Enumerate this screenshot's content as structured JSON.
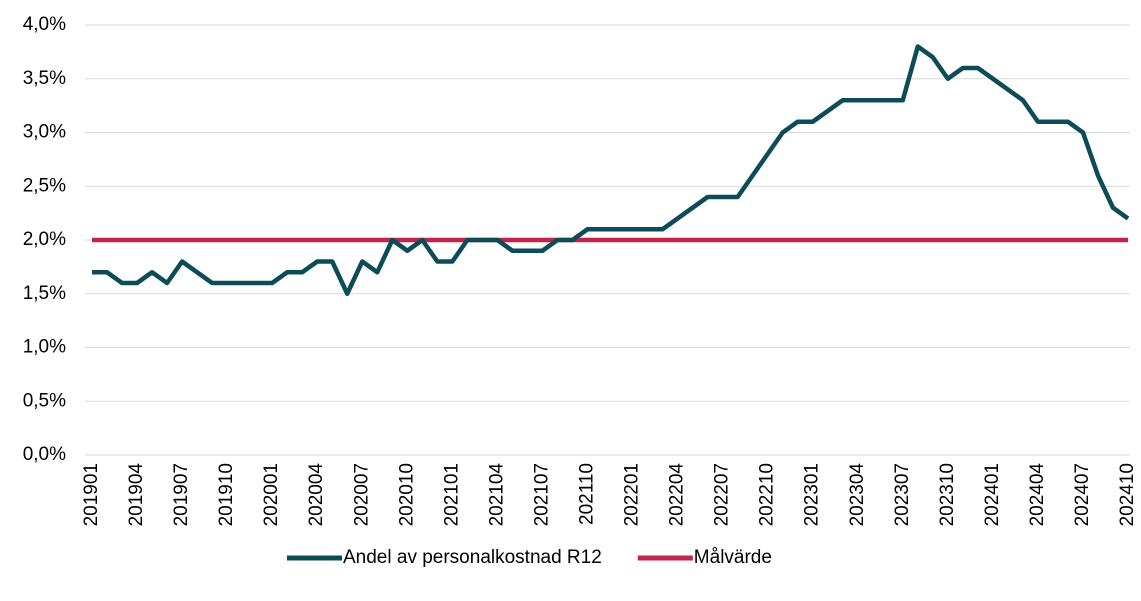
{
  "chart_data": {
    "type": "line",
    "categories": [
      "201901",
      null,
      null,
      "201904",
      null,
      null,
      "201907",
      null,
      null,
      "201910",
      null,
      null,
      "202001",
      null,
      null,
      "202004",
      null,
      null,
      "202007",
      null,
      null,
      "202010",
      null,
      null,
      "202101",
      null,
      null,
      "202104",
      null,
      null,
      "202107",
      null,
      null,
      "202110",
      null,
      null,
      "202201",
      null,
      null,
      "202204",
      null,
      null,
      "202207",
      null,
      null,
      "202210",
      null,
      null,
      "202301",
      null,
      null,
      "202304",
      null,
      null,
      "202307",
      null,
      null,
      "202310",
      null,
      null,
      "202401",
      null,
      null,
      "202404",
      null,
      null,
      "202407",
      null,
      null,
      "202410"
    ],
    "series": [
      {
        "name": "Andel av personalkostnad R12",
        "color": "#0c4c58",
        "values": [
          1.7,
          1.7,
          1.6,
          1.6,
          1.7,
          1.6,
          1.8,
          1.7,
          1.6,
          1.6,
          1.6,
          1.6,
          1.6,
          1.7,
          1.7,
          1.8,
          1.8,
          1.5,
          1.8,
          1.7,
          2.0,
          1.9,
          2.0,
          1.8,
          1.8,
          2.0,
          2.0,
          2.0,
          1.9,
          1.9,
          1.9,
          2.0,
          2.0,
          2.1,
          2.1,
          2.1,
          2.1,
          2.1,
          2.1,
          2.2,
          2.3,
          2.4,
          2.4,
          2.4,
          2.6,
          2.8,
          3.0,
          3.1,
          3.1,
          3.2,
          3.3,
          3.3,
          3.3,
          3.3,
          3.3,
          3.8,
          3.7,
          3.5,
          3.6,
          3.6,
          3.5,
          3.4,
          3.3,
          3.1,
          3.1,
          3.1,
          3.0,
          2.6,
          2.3,
          2.2
        ]
      },
      {
        "name": "Målvärde",
        "color": "#c0264a",
        "values": [
          2.0,
          2.0,
          2.0,
          2.0,
          2.0,
          2.0,
          2.0,
          2.0,
          2.0,
          2.0,
          2.0,
          2.0,
          2.0,
          2.0,
          2.0,
          2.0,
          2.0,
          2.0,
          2.0,
          2.0,
          2.0,
          2.0,
          2.0,
          2.0,
          2.0,
          2.0,
          2.0,
          2.0,
          2.0,
          2.0,
          2.0,
          2.0,
          2.0,
          2.0,
          2.0,
          2.0,
          2.0,
          2.0,
          2.0,
          2.0,
          2.0,
          2.0,
          2.0,
          2.0,
          2.0,
          2.0,
          2.0,
          2.0,
          2.0,
          2.0,
          2.0,
          2.0,
          2.0,
          2.0,
          2.0,
          2.0,
          2.0,
          2.0,
          2.0,
          2.0,
          2.0,
          2.0,
          2.0,
          2.0,
          2.0,
          2.0,
          2.0,
          2.0,
          2.0,
          2.0
        ]
      }
    ],
    "ylim": [
      0,
      4
    ],
    "yticks": [
      {
        "value": 0,
        "label": "0,0%"
      },
      {
        "value": 0.5,
        "label": "0,5%"
      },
      {
        "value": 1,
        "label": "1,0%"
      },
      {
        "value": 1.5,
        "label": "1,5%"
      },
      {
        "value": 2,
        "label": "2,0%"
      },
      {
        "value": 2.5,
        "label": "2,5%"
      },
      {
        "value": 3,
        "label": "3,0%"
      },
      {
        "value": 3.5,
        "label": "3,5%"
      },
      {
        "value": 4,
        "label": "4,0%"
      }
    ],
    "grid": true,
    "legend": "bottom"
  }
}
